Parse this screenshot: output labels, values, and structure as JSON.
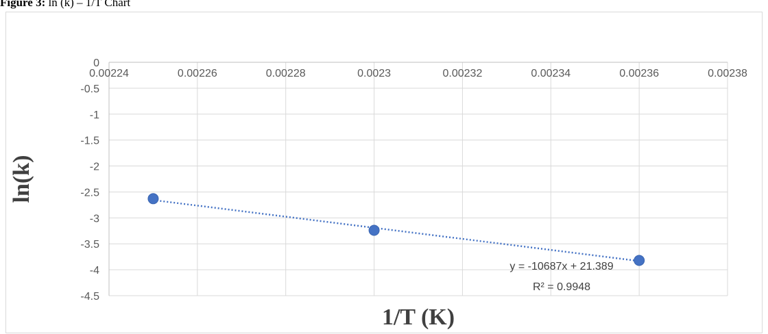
{
  "caption": {
    "label": "Figure 3:",
    "text": " ln (k) – 1/T Chart"
  },
  "chart_data": {
    "type": "scatter",
    "title": "",
    "xlabel": "1/T (K)",
    "ylabel": "ln(k)",
    "xlim": [
      0.00224,
      0.00238
    ],
    "ylim": [
      -4.5,
      0
    ],
    "x_ticks": [
      "0.00224",
      "0.00226",
      "0.00228",
      "0.0023",
      "0.00232",
      "0.00234",
      "0.00236",
      "0.00238"
    ],
    "x_tick_values": [
      0.00224,
      0.00226,
      0.00228,
      0.0023,
      0.00232,
      0.00234,
      0.00236,
      0.00238
    ],
    "y_ticks": [
      "0",
      "-0.5",
      "-1",
      "-1.5",
      "-2",
      "-2.5",
      "-3",
      "-3.5",
      "-4",
      "-4.5"
    ],
    "y_tick_values": [
      0,
      -0.5,
      -1,
      -1.5,
      -2,
      -2.5,
      -3,
      -3.5,
      -4,
      -4.5
    ],
    "x_axis_position": "top",
    "grid": true,
    "series": [
      {
        "x": [
          0.00225,
          0.0023,
          0.00236
        ],
        "y": [
          -2.63,
          -3.24,
          -3.82
        ],
        "color": "#4472c4"
      }
    ],
    "trendline": {
      "type": "linear",
      "slope": -10687,
      "intercept": 21.389,
      "style": "dotted",
      "color": "#4472c4",
      "equation_label": "y = -10687x + 21.389",
      "r2_label": "R² = 0.9948"
    }
  }
}
